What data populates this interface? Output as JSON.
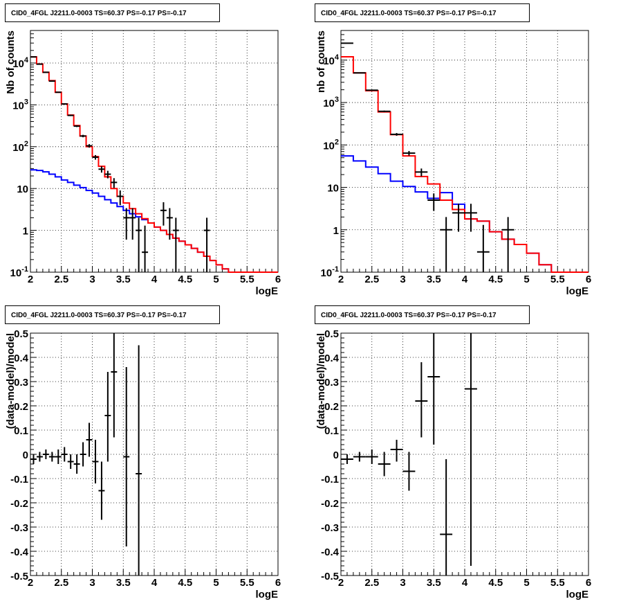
{
  "title": "CID0_4FGL J2211.0-0003 TS=60.37 PS=-0.17 PS=-0.17",
  "colors": {
    "data": "#000000",
    "total_model": "#ff0000",
    "component_model": "#0000ff"
  },
  "chart_data": [
    {
      "type": "line",
      "title": "CID0_4FGL J2211.0-0003 TS=60.37 PS=-0.17 PS=-0.17",
      "xlabel": "logE",
      "ylabel": "Nb of counts",
      "xlim": [
        2,
        6
      ],
      "ylim": [
        0.1,
        60000
      ],
      "yscale": "log",
      "grid": true,
      "xticks": [
        2,
        2.5,
        3,
        3.5,
        4,
        4.5,
        5,
        5.5,
        6
      ],
      "xticklabels": [
        "2",
        "2.5",
        "3",
        "3.5",
        "4",
        "4.5",
        "5",
        "5.5",
        "6"
      ],
      "yticks": [
        0.1,
        1,
        10,
        100,
        1000,
        10000
      ],
      "yticklabels": [
        "10^-1",
        "1",
        "10",
        "10^2",
        "10^3",
        "10^4"
      ],
      "bin_edges": [
        2,
        2.1,
        2.2,
        2.3,
        2.4,
        2.5,
        2.6,
        2.7,
        2.8,
        2.9,
        3,
        3.1,
        3.2,
        3.3,
        3.4,
        3.5,
        3.6,
        3.7,
        3.8,
        3.9,
        4,
        4.1,
        4.2,
        4.3,
        4.4,
        4.5,
        4.6,
        4.7,
        4.8,
        4.9,
        5,
        5.1,
        5.2,
        5.3,
        5.4,
        5.5,
        5.6,
        5.7,
        5.8,
        5.9,
        6
      ],
      "series": [
        {
          "role": "component_model",
          "values": [
            28,
            27,
            25,
            22,
            19,
            16,
            14,
            12,
            10.5,
            9,
            7.8,
            6.5,
            5.4,
            4.5,
            3.7,
            3,
            2.5,
            2.1,
            1.8,
            1.5,
            1.2,
            1,
            0.8,
            0.65,
            0.55,
            0.45,
            0.37,
            0.3,
            0.24,
            0.19,
            0.15,
            0.12,
            0.1,
            0.1,
            0.1,
            0.1,
            0.1,
            0.1,
            0.1,
            0.1
          ]
        },
        {
          "role": "total_model",
          "values": [
            14000,
            9500,
            6000,
            3800,
            2000,
            1050,
            570,
            320,
            180,
            100,
            58,
            34,
            19,
            10,
            6.5,
            4.5,
            3.3,
            2.5,
            1.9,
            1.5,
            1.2,
            1,
            0.8,
            0.65,
            0.55,
            0.45,
            0.37,
            0.3,
            0.24,
            0.19,
            0.15,
            0.12,
            0.1,
            0.1,
            0.1,
            0.1,
            0.1,
            0.1,
            0.1,
            0.1
          ]
        }
      ],
      "points": [
        {
          "x": 2.05,
          "y": 14000,
          "lo": 13800,
          "hi": 14200
        },
        {
          "x": 2.15,
          "y": 9400,
          "lo": 9300,
          "hi": 9500
        },
        {
          "x": 2.25,
          "y": 6000,
          "lo": 5900,
          "hi": 6100
        },
        {
          "x": 2.35,
          "y": 3700,
          "lo": 3600,
          "hi": 3800
        },
        {
          "x": 2.45,
          "y": 2000,
          "lo": 1950,
          "hi": 2050
        },
        {
          "x": 2.55,
          "y": 1050,
          "lo": 1020,
          "hi": 1080
        },
        {
          "x": 2.65,
          "y": 560,
          "lo": 540,
          "hi": 580
        },
        {
          "x": 2.75,
          "y": 310,
          "lo": 295,
          "hi": 325
        },
        {
          "x": 2.85,
          "y": 180,
          "lo": 168,
          "hi": 192
        },
        {
          "x": 2.95,
          "y": 105,
          "lo": 95,
          "hi": 115
        },
        {
          "x": 3.05,
          "y": 56,
          "lo": 49,
          "hi": 63
        },
        {
          "x": 3.15,
          "y": 29,
          "lo": 24,
          "hi": 34
        },
        {
          "x": 3.25,
          "y": 22,
          "lo": 17.5,
          "hi": 26.5
        },
        {
          "x": 3.35,
          "y": 14,
          "lo": 10.3,
          "hi": 17.7
        },
        {
          "x": 3.45,
          "y": 6.5,
          "lo": 4,
          "hi": 9
        },
        {
          "x": 3.55,
          "y": 2,
          "lo": 0.6,
          "hi": 3.4
        },
        {
          "x": 3.65,
          "y": 2,
          "lo": 0.6,
          "hi": 3.4
        },
        {
          "x": 3.75,
          "y": 1,
          "lo": 0.1,
          "hi": 2
        },
        {
          "x": 3.85,
          "y": 0.3,
          "lo": 0.1,
          "hi": 1.3
        },
        {
          "x": 4.15,
          "y": 3,
          "lo": 1.3,
          "hi": 4.7
        },
        {
          "x": 4.25,
          "y": 2,
          "lo": 0.6,
          "hi": 3.4
        },
        {
          "x": 4.35,
          "y": 1,
          "lo": 0.1,
          "hi": 2
        },
        {
          "x": 4.85,
          "y": 1,
          "lo": 0.1,
          "hi": 2
        }
      ]
    },
    {
      "type": "line",
      "title": "CID0_4FGL J2211.0-0003 TS=60.37 PS=-0.17 PS=-0.17",
      "xlabel": "logE",
      "ylabel": "nb of counts",
      "xlim": [
        2,
        6
      ],
      "ylim": [
        0.1,
        50000
      ],
      "yscale": "log",
      "grid": true,
      "xticks": [
        2,
        2.5,
        3,
        3.5,
        4,
        4.5,
        5,
        5.5,
        6
      ],
      "xticklabels": [
        "2",
        "2.5",
        "3",
        "3.5",
        "4",
        "4.5",
        "5",
        "5.5",
        "6"
      ],
      "yticks": [
        0.1,
        1,
        10,
        100,
        1000,
        10000
      ],
      "yticklabels": [
        "10^-1",
        "1",
        "10",
        "10^2",
        "10^3",
        "10^4"
      ],
      "bin_edges": [
        2,
        2.2,
        2.4,
        2.6,
        2.8,
        3,
        3.2,
        3.4,
        3.6,
        3.8,
        4,
        4.2,
        4.4,
        4.6,
        4.8,
        5,
        5.2,
        5.4,
        5.6,
        5.8,
        6
      ],
      "series": [
        {
          "role": "component_model",
          "values": [
            55,
            42,
            30,
            21,
            14,
            10.5,
            7.8,
            5.5,
            7.5,
            4,
            1.8,
            1.6,
            0.9,
            0.6,
            0.45,
            0.28,
            0.15,
            0.1,
            0.1,
            0.1
          ]
        },
        {
          "role": "total_model",
          "values": [
            12000,
            5000,
            1900,
            600,
            175,
            55,
            18,
            12,
            5,
            3,
            1.8,
            1.6,
            0.9,
            0.6,
            0.45,
            0.28,
            0.15,
            0.1,
            0.1,
            0.1
          ]
        }
      ],
      "points": [
        {
          "x": 2.1,
          "y": 25000,
          "lo": 24800,
          "hi": 25200
        },
        {
          "x": 2.3,
          "y": 5000,
          "lo": 4930,
          "hi": 5070
        },
        {
          "x": 2.5,
          "y": 1950,
          "lo": 1900,
          "hi": 2000
        },
        {
          "x": 2.7,
          "y": 620,
          "lo": 595,
          "hi": 645
        },
        {
          "x": 2.9,
          "y": 178,
          "lo": 165,
          "hi": 191
        },
        {
          "x": 3.1,
          "y": 64,
          "lo": 56,
          "hi": 72
        },
        {
          "x": 3.3,
          "y": 23,
          "lo": 18.2,
          "hi": 27.8
        },
        {
          "x": 3.5,
          "y": 5,
          "lo": 2.8,
          "hi": 7.2
        },
        {
          "x": 3.7,
          "y": 1,
          "lo": 0.1,
          "hi": 2
        },
        {
          "x": 3.9,
          "y": 2.5,
          "lo": 0.9,
          "hi": 4.1
        },
        {
          "x": 4.1,
          "y": 2.5,
          "lo": 0.9,
          "hi": 4.1
        },
        {
          "x": 4.3,
          "y": 0.3,
          "lo": 0.1,
          "hi": 1.3
        },
        {
          "x": 4.7,
          "y": 1,
          "lo": 0.1,
          "hi": 2
        }
      ]
    },
    {
      "type": "scatter",
      "title": "CID0_4FGL J2211.0-0003 TS=60.37 PS=-0.17 PS=-0.17",
      "xlabel": "logE",
      "ylabel": "(data-model)/model",
      "xlim": [
        2,
        6
      ],
      "ylim": [
        -0.5,
        0.5
      ],
      "grid": true,
      "xticks": [
        2,
        2.5,
        3,
        3.5,
        4,
        4.5,
        5,
        5.5,
        6
      ],
      "xticklabels": [
        "2",
        "2.5",
        "3",
        "3.5",
        "4",
        "4.5",
        "5",
        "5.5",
        "6"
      ],
      "yticks": [
        -0.5,
        -0.4,
        -0.3,
        -0.2,
        -0.1,
        0,
        0.1,
        0.2,
        0.3,
        0.4,
        0.5
      ],
      "yticklabels": [
        "-0.5",
        "-0.4",
        "-0.3",
        "-0.2",
        "-0.1",
        "0",
        "0.1",
        "0.2",
        "0.3",
        "0.4",
        "0.5"
      ],
      "points": [
        {
          "x": 2.05,
          "y": -0.02,
          "lo": -0.04,
          "hi": 0.0
        },
        {
          "x": 2.15,
          "y": -0.01,
          "lo": -0.03,
          "hi": 0.01
        },
        {
          "x": 2.25,
          "y": 0.0,
          "lo": -0.02,
          "hi": 0.02
        },
        {
          "x": 2.35,
          "y": -0.01,
          "lo": -0.03,
          "hi": 0.01
        },
        {
          "x": 2.45,
          "y": -0.01,
          "lo": -0.04,
          "hi": 0.02
        },
        {
          "x": 2.55,
          "y": 0.0,
          "lo": -0.03,
          "hi": 0.03
        },
        {
          "x": 2.65,
          "y": -0.03,
          "lo": -0.06,
          "hi": 0.0
        },
        {
          "x": 2.75,
          "y": -0.04,
          "lo": -0.08,
          "hi": 0.0
        },
        {
          "x": 2.85,
          "y": 0.0,
          "lo": -0.05,
          "hi": 0.05
        },
        {
          "x": 2.95,
          "y": 0.06,
          "lo": -0.01,
          "hi": 0.13
        },
        {
          "x": 3.05,
          "y": -0.03,
          "lo": -0.12,
          "hi": 0.06
        },
        {
          "x": 3.15,
          "y": -0.15,
          "lo": -0.27,
          "hi": -0.03
        },
        {
          "x": 3.25,
          "y": 0.16,
          "lo": -0.03,
          "hi": 0.34
        },
        {
          "x": 3.35,
          "y": 0.34,
          "lo": 0.07,
          "hi": 0.5
        },
        {
          "x": 3.55,
          "y": -0.01,
          "lo": -0.38,
          "hi": 0.36
        },
        {
          "x": 3.75,
          "y": -0.08,
          "lo": -0.5,
          "hi": 0.45
        }
      ]
    },
    {
      "type": "scatter",
      "title": "CID0_4FGL J2211.0-0003 TS=60.37 PS=-0.17 PS=-0.17",
      "xlabel": "logE",
      "ylabel": "(data-model)/model",
      "xlim": [
        2,
        6
      ],
      "ylim": [
        -0.5,
        0.5
      ],
      "grid": true,
      "xticks": [
        2,
        2.5,
        3,
        3.5,
        4,
        4.5,
        5,
        5.5,
        6
      ],
      "xticklabels": [
        "2",
        "2.5",
        "3",
        "3.5",
        "4",
        "4.5",
        "5",
        "5.5",
        "6"
      ],
      "yticks": [
        -0.5,
        -0.4,
        -0.3,
        -0.2,
        -0.1,
        0,
        0.1,
        0.2,
        0.3,
        0.4,
        0.5
      ],
      "yticklabels": [
        "-0.5",
        "-0.4",
        "-0.3",
        "-0.2",
        "-0.1",
        "0",
        "0.1",
        "0.2",
        "0.3",
        "0.4",
        "0.5"
      ],
      "points": [
        {
          "x": 2.1,
          "y": -0.02,
          "lo": -0.04,
          "hi": 0.0
        },
        {
          "x": 2.3,
          "y": -0.01,
          "lo": -0.03,
          "hi": 0.01
        },
        {
          "x": 2.5,
          "y": -0.01,
          "lo": -0.04,
          "hi": 0.02
        },
        {
          "x": 2.7,
          "y": -0.04,
          "lo": -0.09,
          "hi": 0.01
        },
        {
          "x": 2.9,
          "y": 0.02,
          "lo": -0.03,
          "hi": 0.06
        },
        {
          "x": 3.1,
          "y": -0.07,
          "lo": -0.15,
          "hi": 0.01
        },
        {
          "x": 3.3,
          "y": 0.22,
          "lo": 0.07,
          "hi": 0.38
        },
        {
          "x": 3.5,
          "y": 0.32,
          "lo": 0.04,
          "hi": 0.5
        },
        {
          "x": 3.7,
          "y": -0.33,
          "lo": -0.5,
          "hi": -0.02
        },
        {
          "x": 4.1,
          "y": 0.27,
          "lo": -0.46,
          "hi": 0.5
        }
      ]
    }
  ]
}
